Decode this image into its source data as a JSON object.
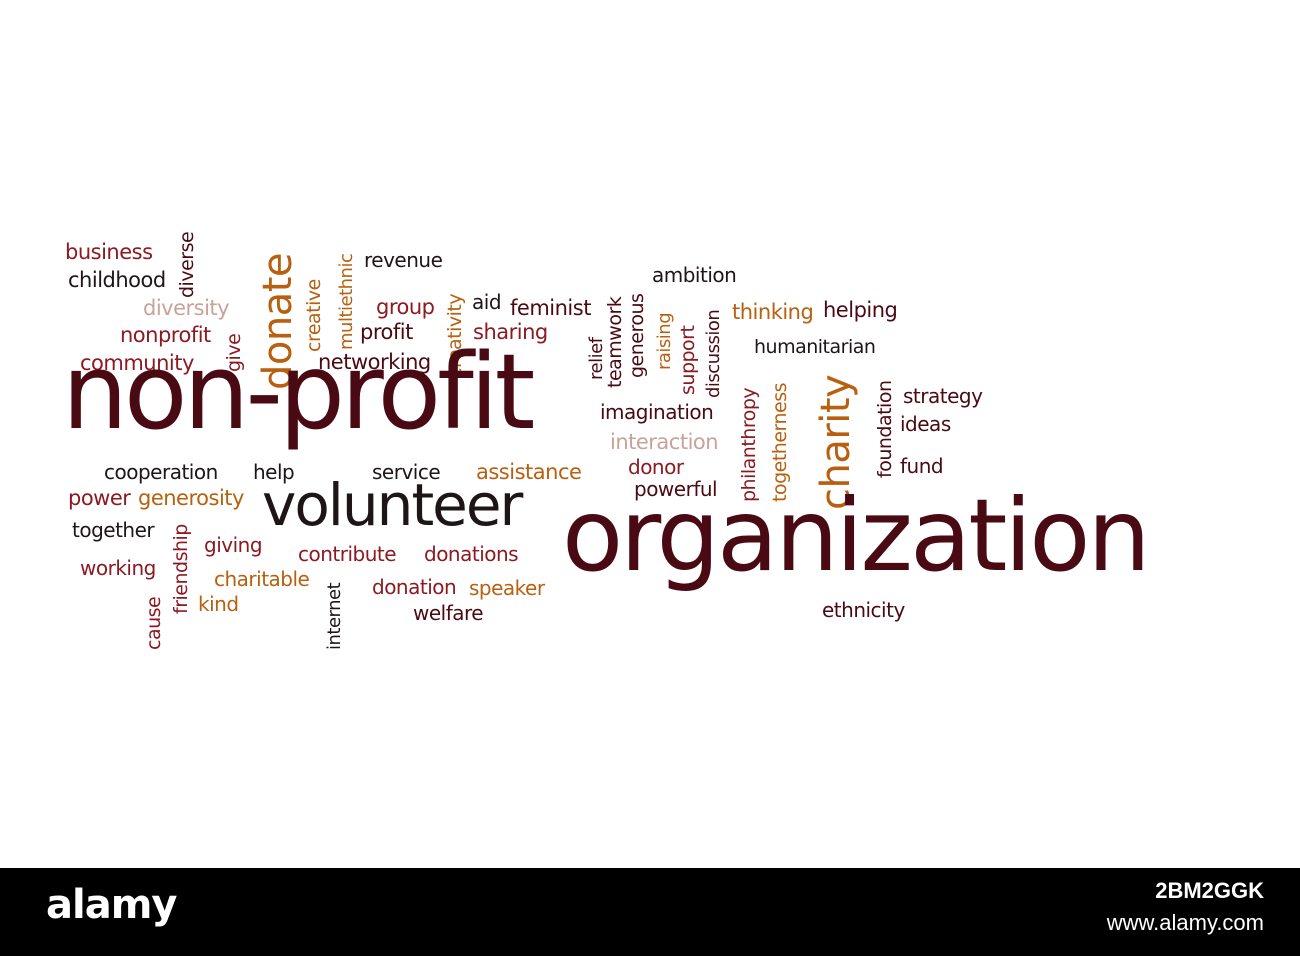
{
  "words": {
    "business": "business",
    "childhood": "childhood",
    "diverse": "diverse",
    "diversity": "diversity",
    "nonprofit": "nonprofit",
    "give": "give",
    "community": "community",
    "donate": "donate",
    "creative": "creative",
    "multiethnic": "multiethnic",
    "revenue": "revenue",
    "group": "group",
    "profit": "profit",
    "networking": "networking",
    "creativity": "creativity",
    "aid": "aid",
    "feminist": "feminist",
    "sharing": "sharing",
    "relief": "relief",
    "teamwork": "teamwork",
    "generous": "generous",
    "raising": "raising",
    "ambition": "ambition",
    "support": "support",
    "discussion": "discussion",
    "thinking": "thinking",
    "helping": "helping",
    "humanitarian": "humanitarian",
    "non_profit": "non-profit",
    "imagination": "imagination",
    "interaction": "interaction",
    "philanthropy": "philanthropy",
    "togetherness": "togetherness",
    "charity": "charity",
    "foundation": "foundation",
    "strategy": "strategy",
    "ideas": "ideas",
    "fund": "fund",
    "cooperation": "cooperation",
    "help": "help",
    "service": "service",
    "assistance": "assistance",
    "donor": "donor",
    "powerful": "powerful",
    "power": "power",
    "generosity": "generosity",
    "volunteer": "volunteer",
    "together": "together",
    "friendship": "friendship",
    "giving": "giving",
    "contribute": "contribute",
    "donations": "donations",
    "organization": "organization",
    "working": "working",
    "charitable": "charitable",
    "cause": "cause",
    "kind": "kind",
    "internet": "internet",
    "donation": "donation",
    "speaker": "speaker",
    "welfare": "welfare",
    "ethnicity": "ethnicity"
  },
  "footer": {
    "brand": "alamy",
    "stock_id": "2BM2GGK",
    "site": "www.alamy.com"
  },
  "colors": {
    "dark_maroon": "#4a0a14",
    "red": "#8b1a22",
    "orange": "#b8600f",
    "near_black": "#1e1616",
    "pale_pink": "#c9a29a",
    "footer_bg": "#000000"
  }
}
